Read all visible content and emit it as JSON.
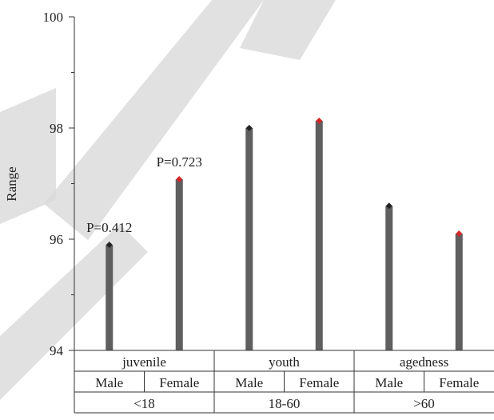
{
  "chart_data": {
    "type": "bar",
    "ylabel": "Range",
    "ylim": [
      94,
      100
    ],
    "yticks": [
      94,
      96,
      98,
      100
    ],
    "grid": false,
    "groups": [
      {
        "label": "juvenile",
        "age_range": "<18",
        "bars": [
          {
            "category": "Male",
            "value": 95.9,
            "marker_color": "#222222",
            "annotation": "P=0.412"
          },
          {
            "category": "Female",
            "value": 97.08,
            "marker_color": "#d62728",
            "annotation": "P=0.723"
          }
        ]
      },
      {
        "label": "youth",
        "age_range": "18-60",
        "bars": [
          {
            "category": "Male",
            "value": 98.0,
            "marker_color": "#222222",
            "annotation": ""
          },
          {
            "category": "Female",
            "value": 98.13,
            "marker_color": "#d62728",
            "annotation": ""
          }
        ]
      },
      {
        "label": "agedness",
        "age_range": ">60",
        "bars": [
          {
            "category": "Male",
            "value": 96.6,
            "marker_color": "#222222",
            "annotation": ""
          },
          {
            "category": "Female",
            "value": 96.1,
            "marker_color": "#d62728",
            "annotation": ""
          }
        ]
      }
    ],
    "bar_color": "#5f5f5f",
    "axis_color": "#333333"
  }
}
